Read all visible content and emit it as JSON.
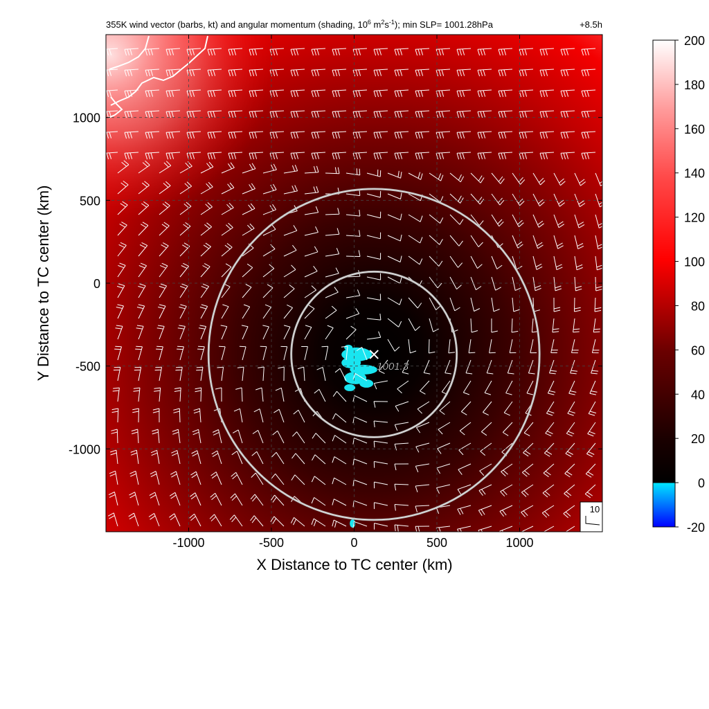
{
  "chart_data": {
    "type": "heatmap",
    "title": {
      "part1": "355K wind vector (barbs, kt) and angular momentum (shading, 10",
      "sup1": "6",
      "part2": " m",
      "sup2": "2",
      "part3": "s",
      "sup3": "-1",
      "part4": "); min SLP= 1001.28hPa",
      "time": "+8.5h"
    },
    "xlabel": "X Distance to TC center (km)",
    "ylabel": "Y Distance to TC center (km)",
    "xlim": [
      -1500,
      1500
    ],
    "ylim": [
      -1500,
      1500
    ],
    "xticks": [
      -1000,
      -500,
      0,
      500,
      1000
    ],
    "yticks": [
      -1000,
      -500,
      0,
      500,
      1000
    ],
    "grid": true,
    "grid_style": "dashed",
    "colorbar": {
      "ticks": [
        200,
        180,
        160,
        140,
        120,
        100,
        80,
        60,
        40,
        20,
        0,
        -20
      ],
      "range": [
        -20,
        200
      ],
      "colors": [
        "#0000ff",
        "#00e5ff",
        "#000000",
        "#3a0000",
        "#7f0000",
        "#c80000",
        "#ff0000",
        "#ff5050",
        "#ff9a9a",
        "#ffd5d5",
        "#ffffff"
      ]
    },
    "range_rings_km": [
      500,
      1000
    ],
    "center": {
      "x": 120,
      "y": -430
    },
    "min_slp_label": "1001.3",
    "reference_barb_label": "10"
  }
}
